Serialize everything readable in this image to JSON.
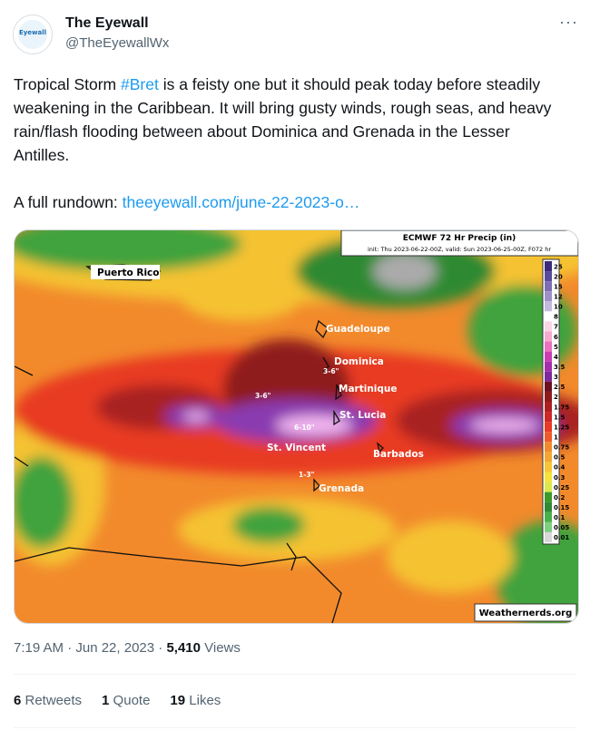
{
  "header": {
    "name": "The Eyewall",
    "handle": "@TheEyewallWx",
    "avatar_text": "Eyewall"
  },
  "tweet": {
    "text_before": "Tropical Storm ",
    "hashtag": "#Bret",
    "text_after": " is a feisty one but it should peak today before steadily weakening in the Caribbean. It will bring gusty winds, rough seas, and heavy rain/flash flooding between about Dominica and Grenada in the Lesser Antilles.",
    "rundown_label": "A full rundown: ",
    "link": "theeyewall.com/june-22-2023-o…"
  },
  "map": {
    "title": "ECMWF 72 Hr Precip (in)",
    "subtitle": "init: Thu 2023-06-22-00Z, valid: Sun 2023-06-25-00Z, F072 hr",
    "places": [
      "Puerto Rico",
      "Guadeloupe",
      "Dominica",
      "Martinique",
      "St. Lucia",
      "St. Vincent",
      "Barbados",
      "Grenada"
    ],
    "annotations": [
      "3-6\"",
      "3-6\"",
      "6-10\"",
      "1-3\""
    ],
    "legend": [
      "25",
      "20",
      "15",
      "12",
      "10",
      "8",
      "7",
      "6",
      "5",
      "4",
      "3.5",
      "3",
      "2.5",
      "2",
      "1.75",
      "1.5",
      "1.25",
      "1",
      "0.75",
      "0.5",
      "0.4",
      "0.3",
      "0.25",
      "0.2",
      "0.15",
      "0.1",
      "0.05",
      "0.01"
    ],
    "credit": "Weathernerds.org"
  },
  "meta": {
    "time": "7:19 AM · Jun 22, 2023 · ",
    "views_count": "5,410",
    "views_label": " Views"
  },
  "stats": [
    {
      "count": "6",
      "label": " Retweets"
    },
    {
      "count": "1",
      "label": " Quote"
    },
    {
      "count": "19",
      "label": " Likes"
    }
  ]
}
